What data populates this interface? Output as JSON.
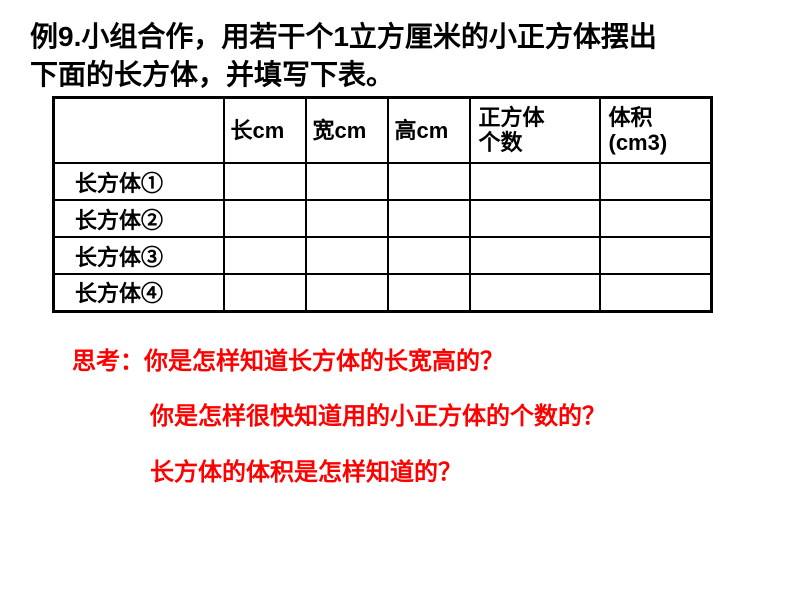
{
  "title_line1": "例9.小组合作，用若干个1立方厘米的小正方体摆出",
  "title_line2": "下面的长方体，并填写下表。",
  "table": {
    "headers": {
      "h0": "",
      "h1": "长cm",
      "h2": "宽cm",
      "h3": "高cm",
      "h4_l1": "正方体",
      "h4_l2": "个数",
      "h5_l1": "体积",
      "h5_l2": "(cm3)"
    },
    "rows": [
      {
        "label": "长方体①",
        "c1": "",
        "c2": "",
        "c3": "",
        "c4": "",
        "c5": ""
      },
      {
        "label": "长方体②",
        "c1": "",
        "c2": "",
        "c3": "",
        "c4": "",
        "c5": ""
      },
      {
        "label": "长方体③",
        "c1": "",
        "c2": "",
        "c3": "",
        "c4": "",
        "c5": ""
      },
      {
        "label": "长方体④",
        "c1": "",
        "c2": "",
        "c3": "",
        "c4": "",
        "c5": ""
      }
    ]
  },
  "questions": {
    "label": "思考：",
    "q1": "你是怎样知道长方体的长宽高的？",
    "q2": "你是怎样很快知道用的小正方体的个数的？",
    "q3": "长方体的体积是怎样知道的？"
  },
  "colors": {
    "text": "#000000",
    "highlight": "#ff0000",
    "background": "#ffffff",
    "border": "#000000"
  },
  "font_sizes": {
    "title": 28,
    "table": 22,
    "questions": 24
  }
}
